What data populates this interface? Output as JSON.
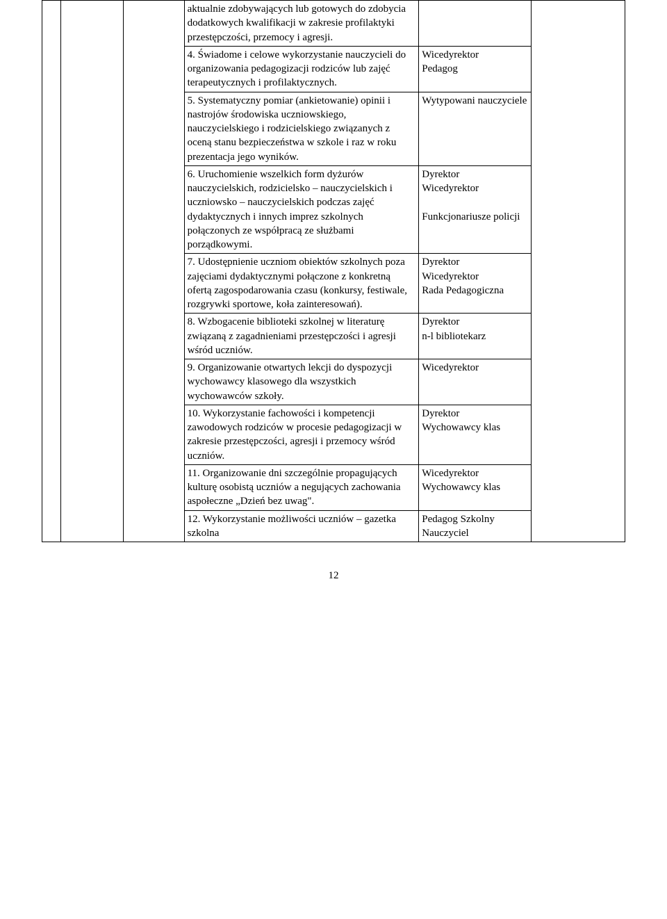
{
  "page_number": "12",
  "rows": [
    {
      "d": "aktualnie zdobywających lub gotowych do zdobycia dodatkowych kwalifikacji w zakresie profilaktyki przestępczości, przemocy i agresji.",
      "e": ""
    },
    {
      "d": "4. Świadome i celowe wykorzystanie nauczycieli do organizowania pedagogizacji rodziców lub zajęć terapeutycznych i profilaktycznych.",
      "e": "Wicedyrektor\nPedagog"
    },
    {
      "d": "5. Systematyczny pomiar (ankietowanie) opinii i nastrojów środowiska uczniowskiego, nauczycielskiego i rodzicielskiego związanych z oceną stanu bezpieczeństwa w szkole i raz w roku prezentacja jego wyników.",
      "e": "Wytypowani nauczyciele"
    },
    {
      "d": "6. Uruchomienie wszelkich form dyżurów nauczycielskich, rodzicielsko – nauczycielskich i uczniowsko – nauczycielskich podczas zajęć dydaktycznych i innych imprez szkolnych połączonych ze współpracą ze służbami porządkowymi.",
      "e": "Dyrektor\nWicedyrektor\n\nFunkcjonariusze policji"
    },
    {
      "d": "7. Udostępnienie uczniom obiektów szkolnych poza zajęciami dydaktycznymi połączone z konkretną ofertą zagospodarowania czasu (konkursy, festiwale, rozgrywki sportowe, koła zainteresowań).",
      "e": "Dyrektor\nWicedyrektor\nRada Pedagogiczna"
    },
    {
      "d": "8. Wzbogacenie biblioteki szkolnej w literaturę związaną z zagadnieniami przestępczości i agresji wśród uczniów.",
      "e": "Dyrektor\nn-l bibliotekarz"
    },
    {
      "d": "9. Organizowanie otwartych lekcji do dyspozycji wychowawcy klasowego dla wszystkich wychowawców szkoły.",
      "e": "Wicedyrektor"
    },
    {
      "d": "10. Wykorzystanie fachowości i kompetencji zawodowych rodziców w procesie pedagogizacji w zakresie przestępczości, agresji i przemocy wśród uczniów.",
      "e": "Dyrektor\nWychowawcy klas"
    },
    {
      "d": "11. Organizowanie dni szczególnie propagujących kulturę osobistą uczniów a negujących zachowania aspołeczne „Dzień bez uwag\".",
      "e": "Wicedyrektor\nWychowawcy klas"
    },
    {
      "d": "12. Wykorzystanie możliwości uczniów – gazetka szkolna",
      "e": "Pedagog Szkolny\nNauczyciel"
    }
  ]
}
